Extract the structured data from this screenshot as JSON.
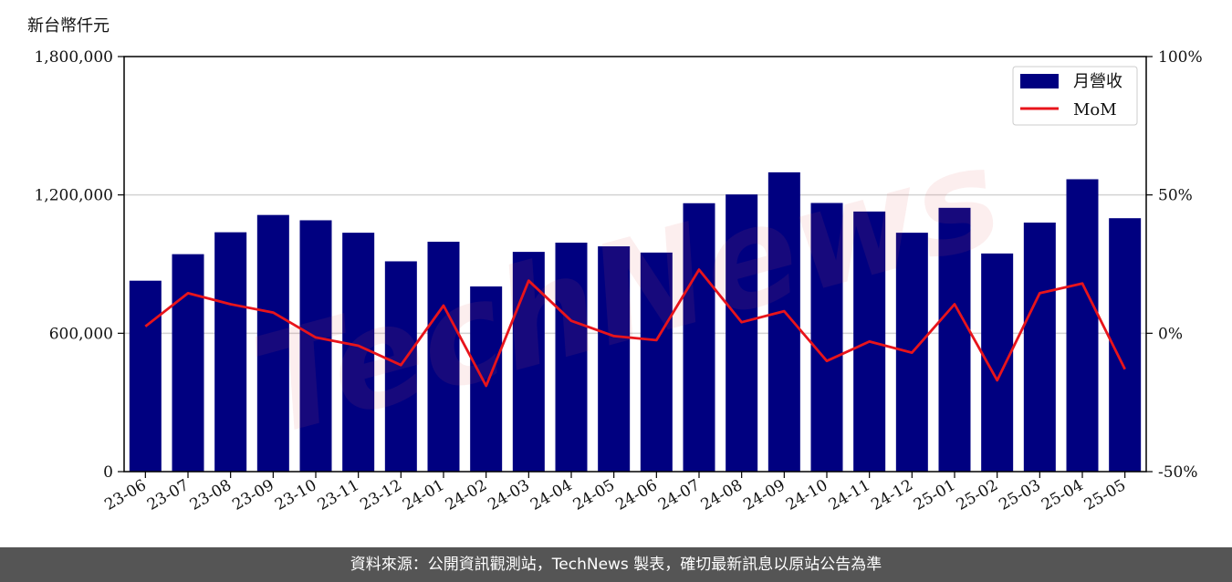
{
  "unit_label": "新台幣仟元",
  "footer_text": "資料來源：公開資訊觀測站，TechNews 製表，確切最新訊息以原站公告為準",
  "watermark_text": "TechNews",
  "colors": {
    "bar": "#000080",
    "line": "#e8141b",
    "grid": "#d3d3d3",
    "footer_bg": "#555555"
  },
  "chart_data": {
    "type": "bar",
    "title": "",
    "xlabel": "",
    "ylabel": "新台幣仟元",
    "categories": [
      "23-06",
      "23-07",
      "23-08",
      "23-09",
      "23-10",
      "23-11",
      "23-12",
      "24-01",
      "24-02",
      "24-03",
      "24-04",
      "24-05",
      "24-06",
      "24-07",
      "24-08",
      "24-09",
      "24-10",
      "24-11",
      "24-12",
      "25-01",
      "25-02",
      "25-03",
      "25-04",
      "25-05"
    ],
    "series": [
      {
        "name": "月營收",
        "type": "bar",
        "axis": "left",
        "values": [
          828000,
          943000,
          1038000,
          1113000,
          1090000,
          1036000,
          912000,
          997000,
          803000,
          953000,
          993000,
          977000,
          950000,
          1164000,
          1202000,
          1298000,
          1165000,
          1128000,
          1036000,
          1144000,
          946000,
          1080000,
          1268000,
          1099000
        ]
      },
      {
        "name": "MoM",
        "type": "line",
        "axis": "right",
        "values": [
          2.5,
          14.5,
          10.5,
          7.5,
          -1.5,
          -4.5,
          -11.5,
          10.0,
          -19.0,
          19.0,
          4.5,
          -1.0,
          -2.5,
          23.0,
          4.0,
          8.0,
          -10.0,
          -3.0,
          -7.0,
          10.5,
          -17.0,
          14.5,
          18.0,
          -13.0
        ]
      }
    ],
    "ylim_left": [
      0,
      1800000
    ],
    "yticks_left": [
      0,
      600000,
      1200000,
      1800000
    ],
    "ytick_labels_left": [
      "0",
      "600,000",
      "1,200,000",
      "1,800,000"
    ],
    "ylim_right": [
      -50,
      100
    ],
    "yticks_right": [
      -50,
      0,
      50,
      100
    ],
    "ytick_labels_right": [
      "-50%",
      "0%",
      "50%",
      "100%"
    ],
    "grid": "horizontal",
    "legend": "top-right",
    "legend_entries": [
      "月營收",
      "MoM"
    ]
  }
}
